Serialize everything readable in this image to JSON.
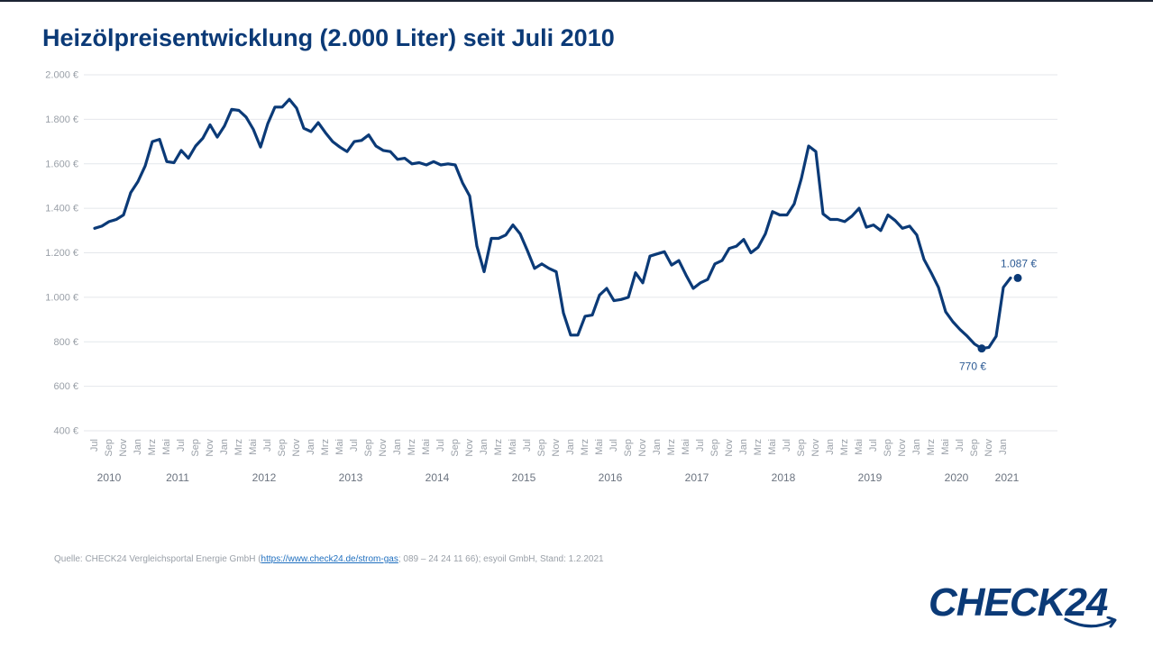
{
  "title": "Heizölpreisentwicklung (2.000 Liter) seit Juli 2010",
  "source": {
    "prefix": "Quelle: CHECK24 Vergleichsportal Energie GmbH (",
    "link": "https://www.check24.de/strom-gas",
    "suffix": "; 089 – 24 24 11 66); esyoil GmbH, Stand: 1.2.2021"
  },
  "logo": {
    "text": "CHECK24"
  },
  "colors": {
    "line": "#0b3a77",
    "grid": "#e4e7eb",
    "tick": "#9aa0a8",
    "year": "#6c7480",
    "title": "#0b3a77"
  },
  "chart_data": {
    "type": "line",
    "title": "Heizölpreisentwicklung (2.000 Liter) seit Juli 2010",
    "xlabel": "",
    "ylabel": "",
    "ylim": [
      400,
      2000
    ],
    "yticks": [
      400,
      600,
      800,
      1000,
      1200,
      1400,
      1600,
      1800,
      2000
    ],
    "ytick_labels": [
      "400 €",
      "600 €",
      "800 €",
      "1.000 €",
      "1.200 €",
      "1.400 €",
      "1.600 €",
      "1.800 €",
      "2.000 €"
    ],
    "grid": true,
    "month_labels": [
      "Jul",
      "Sep",
      "Nov",
      "Jan",
      "Mrz",
      "Mai",
      "Jul",
      "Sep",
      "Nov",
      "Jan",
      "Mrz",
      "Mai",
      "Jul",
      "Sep",
      "Nov",
      "Jan",
      "Mrz",
      "Mai",
      "Jul",
      "Sep",
      "Nov",
      "Jan",
      "Mrz",
      "Mai",
      "Jul",
      "Sep",
      "Nov",
      "Jan",
      "Mrz",
      "Mai",
      "Jul",
      "Sep",
      "Nov",
      "Jan",
      "Mrz",
      "Mai",
      "Jul",
      "Sep",
      "Nov",
      "Jan",
      "Mrz",
      "Mai",
      "Jul",
      "Sep",
      "Nov",
      "Jan",
      "Mrz",
      "Mai",
      "Jul",
      "Sep",
      "Nov",
      "Jan",
      "Mrz",
      "Mai",
      "Jul",
      "Sep",
      "Nov",
      "Jan",
      "Mrz",
      "Mai",
      "Jul",
      "Sep",
      "Nov",
      "Jan"
    ],
    "years": [
      {
        "label": "2010",
        "at_month": 2
      },
      {
        "label": "2011",
        "at_month": 11.5
      },
      {
        "label": "2012",
        "at_month": 23.5
      },
      {
        "label": "2013",
        "at_month": 35.5
      },
      {
        "label": "2014",
        "at_month": 47.5
      },
      {
        "label": "2015",
        "at_month": 59.5
      },
      {
        "label": "2016",
        "at_month": 71.5
      },
      {
        "label": "2017",
        "at_month": 83.5
      },
      {
        "label": "2018",
        "at_month": 95.5
      },
      {
        "label": "2019",
        "at_month": 107.5
      },
      {
        "label": "2020",
        "at_month": 119.5
      },
      {
        "label": "2021",
        "at_month": 126.5
      }
    ],
    "start": "Jul 2010",
    "values": [
      1310,
      1320,
      1340,
      1350,
      1370,
      1470,
      1520,
      1590,
      1700,
      1710,
      1610,
      1605,
      1660,
      1625,
      1680,
      1715,
      1775,
      1720,
      1770,
      1845,
      1840,
      1810,
      1755,
      1675,
      1780,
      1855,
      1855,
      1890,
      1850,
      1760,
      1745,
      1785,
      1740,
      1700,
      1675,
      1655,
      1700,
      1705,
      1730,
      1680,
      1660,
      1655,
      1620,
      1625,
      1600,
      1605,
      1595,
      1610,
      1595,
      1600,
      1595,
      1515,
      1455,
      1230,
      1115,
      1265,
      1265,
      1280,
      1325,
      1285,
      1210,
      1130,
      1150,
      1130,
      1115,
      930,
      830,
      830,
      915,
      920,
      1010,
      1040,
      985,
      990,
      1000,
      1110,
      1065,
      1185,
      1195,
      1205,
      1145,
      1165,
      1100,
      1040,
      1065,
      1080,
      1150,
      1165,
      1220,
      1230,
      1260,
      1200,
      1225,
      1285,
      1385,
      1370,
      1370,
      1420,
      1535,
      1680,
      1655,
      1375,
      1350,
      1350,
      1340,
      1365,
      1400,
      1315,
      1325,
      1300,
      1370,
      1345,
      1310,
      1320,
      1280,
      1170,
      1110,
      1045,
      935,
      890,
      855,
      825,
      790,
      770,
      775,
      825,
      1045,
      1087
    ],
    "annotations": [
      {
        "label": "770 €",
        "at_month": 123,
        "value": 770,
        "position": "below"
      },
      {
        "label": "1.087 €",
        "at_month": 128,
        "value": 1087,
        "position": "above"
      }
    ]
  }
}
